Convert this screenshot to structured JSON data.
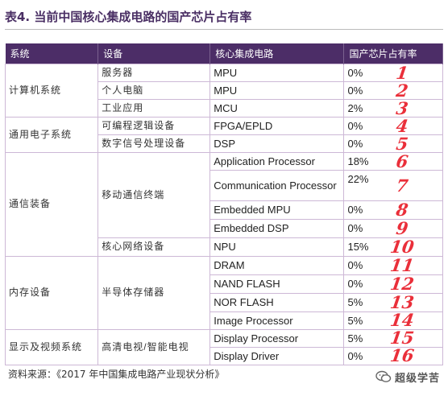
{
  "title": "表4. 当前中国核心集成电路的国产芯片占有率",
  "table": {
    "headers": [
      "系统",
      "设备",
      "核心集成电路",
      "国产芯片占有率"
    ],
    "systems": [
      "计算机系统",
      "通用电子系统",
      "通信装备",
      "内存设备",
      "显示及视频系统"
    ],
    "devices": [
      "服务器",
      "个人电脑",
      "工业应用",
      "可编程逻辑设备",
      "数字信号处理设备",
      "移动通信终端",
      "核心网络设备",
      "半导体存储器",
      "高清电视/智能电视"
    ],
    "rows": [
      {
        "chip": "MPU",
        "share": "0%"
      },
      {
        "chip": "MPU",
        "share": "0%"
      },
      {
        "chip": "MCU",
        "share": "2%"
      },
      {
        "chip": "FPGA/EPLD",
        "share": "0%"
      },
      {
        "chip": "DSP",
        "share": "0%"
      },
      {
        "chip": "Application Processor",
        "share": "18%"
      },
      {
        "chip": "Communication Processor",
        "share": "22%"
      },
      {
        "chip": "Embedded MPU",
        "share": "0%"
      },
      {
        "chip": "Embedded DSP",
        "share": "0%"
      },
      {
        "chip": "NPU",
        "share": "15%"
      },
      {
        "chip": "DRAM",
        "share": "0%"
      },
      {
        "chip": "NAND FLASH",
        "share": "0%"
      },
      {
        "chip": "NOR FLASH",
        "share": "5%"
      },
      {
        "chip": "Image Processor",
        "share": "5%"
      },
      {
        "chip": "Display Processor",
        "share": "5%"
      },
      {
        "chip": "Display Driver",
        "share": "0%"
      }
    ]
  },
  "handwritten_numbers": [
    "1",
    "2",
    "3",
    "4",
    "5",
    "6",
    "7",
    "8",
    "9",
    "10",
    "11",
    "12",
    "13",
    "14",
    "15",
    "16"
  ],
  "source": "资料来源：《2017 年中国集成电路产业现状分析》",
  "watermark": "超级学苦",
  "colors": {
    "header_bg": "#4c2d67",
    "border": "#cdb8d6",
    "handwriting": "#ea2f3a",
    "title": "#4a2f64"
  }
}
